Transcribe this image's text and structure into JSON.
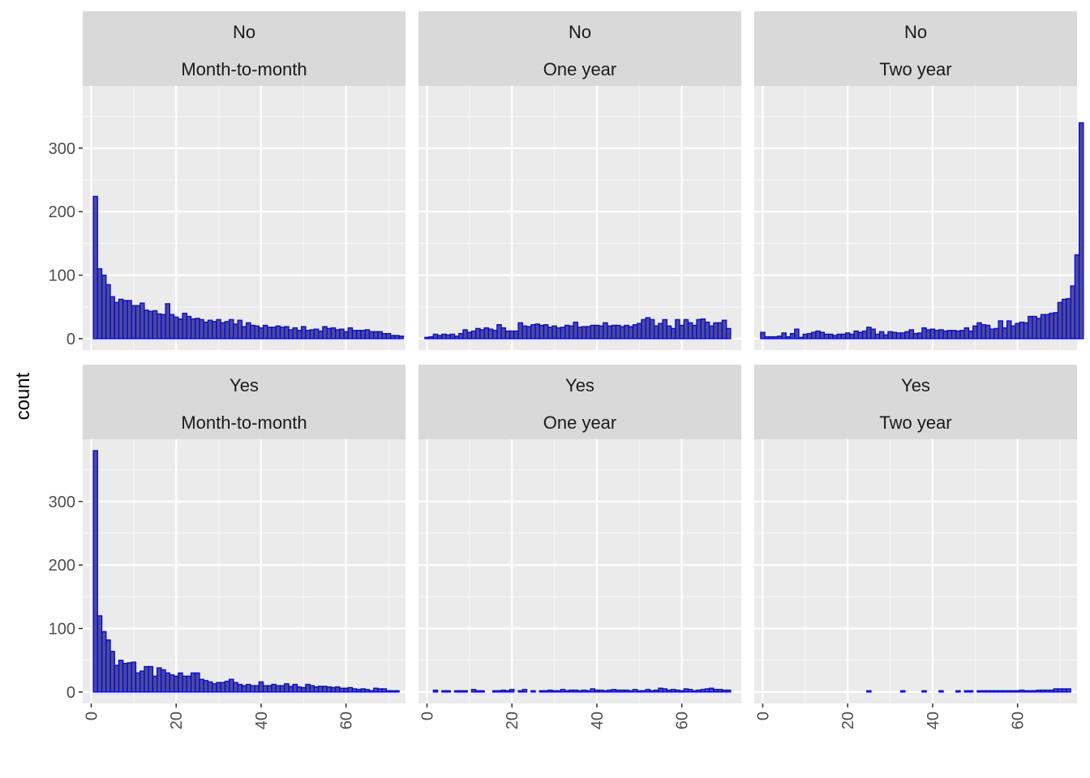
{
  "colors": {
    "panel_bg": "#EBEBEB",
    "strip_bg": "#D9D9D9",
    "grid_major": "#FFFFFF",
    "grid_minor": "#F5F5F5",
    "bar_fill": "#4D4D8A",
    "bar_outline": "#0000FF",
    "tick": "#333333"
  },
  "chart_data": {
    "type": "bar",
    "subtype": "faceted histogram",
    "ylabel": "count",
    "xlabel": "",
    "facet_rows": [
      "No",
      "Yes"
    ],
    "facet_cols": [
      "Month-to-month",
      "One year",
      "Two year"
    ],
    "xlim": [
      -2,
      74
    ],
    "ylim": [
      -18,
      398
    ],
    "x_ticks": [
      0,
      20,
      40,
      60
    ],
    "y_ticks": [
      0,
      100,
      200,
      300
    ],
    "x_tick_labels": [
      "0",
      "20",
      "40",
      "60"
    ],
    "y_tick_labels": [
      "0",
      "100",
      "200",
      "300"
    ],
    "grid": true,
    "panels": [
      {
        "row_label": "No",
        "col_label": "Month-to-month",
        "x_start": 1,
        "values": [
          224,
          110,
          100,
          85,
          66,
          57,
          62,
          60,
          60,
          52,
          52,
          56,
          45,
          43,
          44,
          39,
          38,
          55,
          38,
          34,
          31,
          40,
          35,
          31,
          32,
          30,
          26,
          29,
          27,
          30,
          25,
          27,
          30,
          23,
          29,
          19,
          25,
          21,
          20,
          17,
          21,
          18,
          18,
          20,
          18,
          19,
          14,
          17,
          13,
          19,
          13,
          14,
          15,
          12,
          19,
          16,
          17,
          14,
          15,
          11,
          17,
          13,
          13,
          13,
          14,
          11,
          11,
          11,
          8,
          8,
          5,
          5,
          4
        ]
      },
      {
        "row_label": "No",
        "col_label": "One year",
        "x_start": 0,
        "values": [
          2,
          3,
          7,
          5,
          7,
          6,
          7,
          4,
          8,
          14,
          10,
          12,
          16,
          14,
          17,
          15,
          13,
          22,
          17,
          12,
          12,
          12,
          25,
          20,
          19,
          22,
          23,
          21,
          22,
          18,
          20,
          17,
          18,
          21,
          20,
          26,
          18,
          19,
          19,
          21,
          21,
          20,
          25,
          20,
          21,
          21,
          19,
          21,
          19,
          22,
          24,
          30,
          33,
          30,
          20,
          24,
          30,
          20,
          16,
          30,
          21,
          30,
          25,
          21,
          30,
          31,
          26,
          20,
          25,
          25,
          29,
          16
        ]
      },
      {
        "row_label": "No",
        "col_label": "Two year",
        "x_start": 0,
        "values": [
          10,
          3,
          3,
          3,
          4,
          9,
          3,
          8,
          15,
          2,
          7,
          8,
          10,
          12,
          10,
          7,
          7,
          5,
          7,
          7,
          9,
          7,
          12,
          10,
          12,
          18,
          15,
          7,
          11,
          6,
          11,
          10,
          9,
          9,
          11,
          14,
          8,
          9,
          17,
          14,
          15,
          13,
          14,
          12,
          13,
          13,
          12,
          13,
          17,
          12,
          20,
          25,
          22,
          21,
          15,
          16,
          28,
          17,
          28,
          20,
          24,
          26,
          25,
          35,
          35,
          32,
          38,
          38,
          40,
          41,
          57,
          62,
          63,
          83,
          132,
          340
        ]
      },
      {
        "row_label": "Yes",
        "col_label": "Month-to-month",
        "x_start": 1,
        "values": [
          380,
          120,
          95,
          82,
          64,
          42,
          50,
          45,
          46,
          47,
          30,
          33,
          40,
          40,
          25,
          38,
          35,
          30,
          27,
          25,
          30,
          25,
          25,
          30,
          30,
          20,
          18,
          16,
          13,
          15,
          15,
          17,
          20,
          15,
          12,
          10,
          12,
          10,
          10,
          16,
          10,
          10,
          12,
          10,
          10,
          13,
          9,
          12,
          8,
          7,
          12,
          10,
          8,
          9,
          9,
          8,
          7,
          8,
          6,
          6,
          7,
          5,
          4,
          5,
          4,
          2,
          6,
          5,
          5,
          2,
          2,
          2
        ]
      },
      {
        "row_label": "Yes",
        "col_label": "One year",
        "x_start": 0,
        "values": [
          0,
          0,
          3,
          0,
          2,
          2,
          0,
          2,
          2,
          2,
          0,
          4,
          2,
          2,
          0,
          0,
          2,
          2,
          3,
          2,
          4,
          0,
          2,
          4,
          0,
          2,
          0,
          2,
          2,
          3,
          2,
          2,
          4,
          2,
          3,
          3,
          2,
          3,
          2,
          5,
          3,
          3,
          2,
          3,
          4,
          3,
          3,
          3,
          2,
          4,
          2,
          2,
          4,
          2,
          3,
          6,
          5,
          3,
          4,
          3,
          2,
          5,
          4,
          2,
          3,
          4,
          5,
          6,
          4,
          4,
          3,
          3
        ]
      },
      {
        "row_label": "Yes",
        "col_label": "Two year",
        "x_start": 0,
        "values": [
          0,
          0,
          0,
          0,
          0,
          0,
          0,
          0,
          0,
          0,
          0,
          0,
          0,
          0,
          0,
          0,
          0,
          0,
          0,
          0,
          0,
          0,
          0,
          0,
          0,
          2,
          0,
          0,
          0,
          0,
          0,
          0,
          0,
          2,
          0,
          0,
          0,
          0,
          2,
          0,
          0,
          0,
          2,
          0,
          0,
          0,
          2,
          0,
          2,
          2,
          0,
          2,
          2,
          2,
          2,
          2,
          2,
          2,
          2,
          2,
          2,
          3,
          2,
          2,
          2,
          3,
          3,
          3,
          3,
          5,
          5,
          5,
          5
        ]
      }
    ]
  }
}
